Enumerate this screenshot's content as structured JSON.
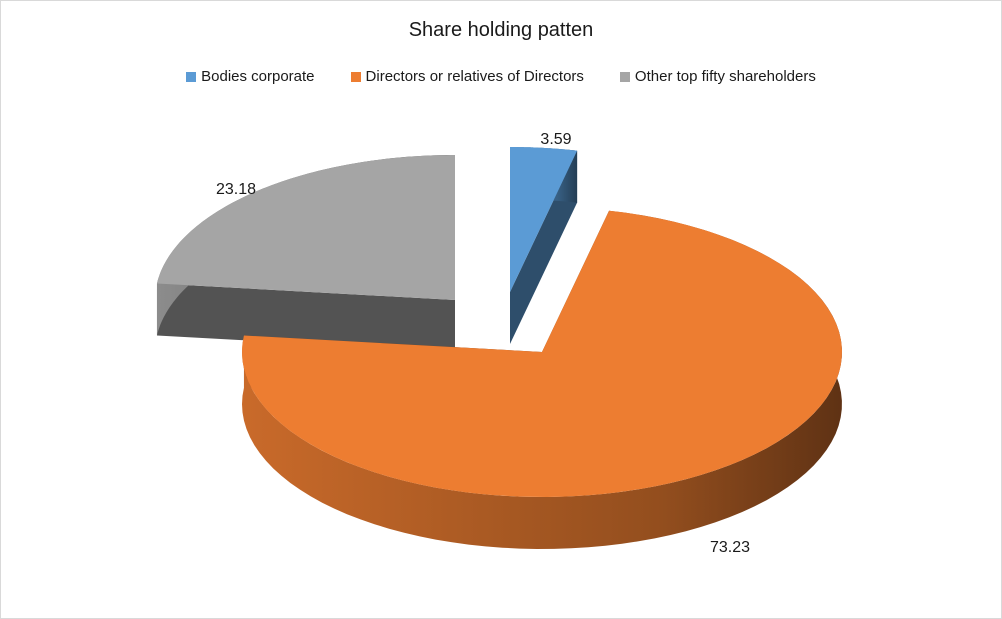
{
  "chart_data": {
    "type": "pie",
    "title": "Share holding patten",
    "legend_position": "top",
    "categories": [
      "Bodies corporate",
      "Directors or relatives of Directors",
      "Other top fifty shareholders"
    ],
    "values": [
      3.59,
      73.23,
      23.18
    ],
    "value_labels": [
      "3.59",
      "73.23",
      "23.18"
    ],
    "colors": [
      "#5b9bd5",
      "#ed7d31",
      "#a5a5a5"
    ],
    "exploded": true,
    "three_d": true
  }
}
